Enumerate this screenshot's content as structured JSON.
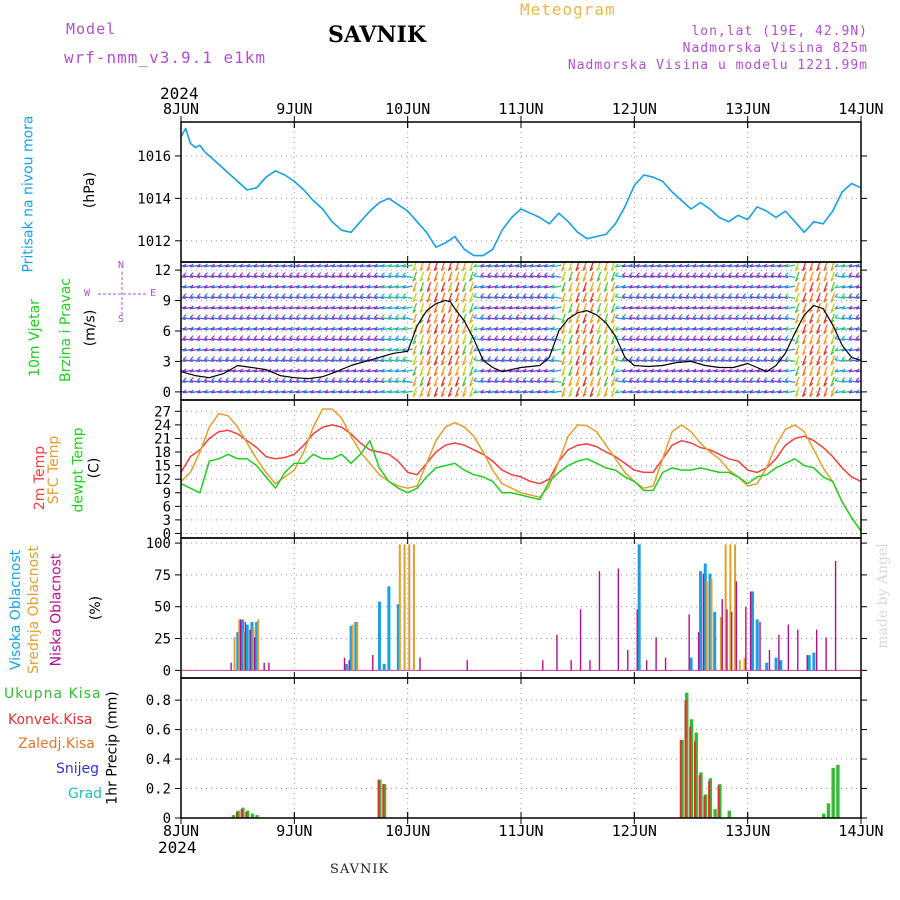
{
  "header": {
    "model_label": "Model",
    "model_name": "wrf-nmm_v3.9.1 e1km",
    "station": "SAVNIK",
    "meteogram": "Meteogram",
    "lonlat": "lon,lat (19E, 42.9N)",
    "altitude": "Nadmorska Visina 825m",
    "model_altitude": "Nadmorska Visina u modelu 1221.99m",
    "year_top": "2024",
    "year_bottom": "2024",
    "footer_station": "SAVNIK",
    "credit": "made by Angel"
  },
  "colors": {
    "pressure": "#1a9fe0",
    "t2m": "#f04040",
    "tsfc": "#e0a030",
    "dewpoint": "#22cc22",
    "cloud_high": "#1a9fe0",
    "cloud_mid": "#e0a030",
    "cloud_low": "#b01090",
    "precip_total": "#33bb33",
    "precip_conv": "#dd3333",
    "snow": "#3333cc",
    "grad": "#22bbbb"
  },
  "chart_data": [
    {
      "type": "line",
      "panel": "pressure",
      "ylabel_line1": "Pritisak na nivou mora",
      "ylabel_line2": "(hPa)",
      "x_ticks": [
        "8JUN",
        "9JUN",
        "10JUN",
        "11JUN",
        "12JUN",
        "13JUN",
        "14JUN"
      ],
      "x_range_hours": [
        0,
        144
      ],
      "ylim": [
        1011,
        1017.6
      ],
      "yticks": [
        1012,
        1014,
        1016
      ],
      "grid": true,
      "series": [
        {
          "x": [
            0,
            1,
            2,
            3,
            4,
            5,
            6,
            8,
            10,
            12,
            14,
            16,
            18,
            20,
            22,
            24,
            26,
            28,
            30,
            32,
            34,
            36,
            38,
            40,
            42,
            44,
            46,
            48,
            50,
            52,
            54,
            56,
            58,
            60,
            62,
            64,
            66,
            68,
            70,
            72,
            74,
            76,
            78,
            80,
            82,
            84,
            86,
            88,
            90,
            92,
            94,
            96,
            98,
            100,
            102,
            104,
            106,
            108,
            110,
            112,
            114,
            116,
            118,
            120,
            122,
            124,
            126,
            128,
            130,
            132,
            134,
            136,
            138,
            140,
            142,
            144
          ],
          "values": [
            1016.9,
            1017.3,
            1016.6,
            1016.4,
            1016.5,
            1016.2,
            1016.0,
            1015.6,
            1015.2,
            1014.8,
            1014.4,
            1014.5,
            1015.0,
            1015.3,
            1015.1,
            1014.8,
            1014.4,
            1013.9,
            1013.5,
            1012.9,
            1012.5,
            1012.4,
            1012.9,
            1013.4,
            1013.8,
            1014.0,
            1013.7,
            1013.4,
            1012.9,
            1012.4,
            1011.7,
            1011.9,
            1012.2,
            1011.6,
            1011.3,
            1011.3,
            1011.6,
            1012.5,
            1013.1,
            1013.5,
            1013.3,
            1013.1,
            1012.8,
            1013.3,
            1012.9,
            1012.4,
            1012.1,
            1012.2,
            1012.3,
            1012.8,
            1013.6,
            1014.6,
            1015.1,
            1015.0,
            1014.8,
            1014.3,
            1013.9,
            1013.5,
            1013.8,
            1013.5,
            1013.1,
            1012.9,
            1013.2,
            1013.0,
            1013.6,
            1013.4,
            1013.1,
            1013.4,
            1012.9,
            1012.4,
            1012.9,
            1012.8,
            1013.4,
            1014.3,
            1014.7,
            1014.5
          ]
        }
      ]
    },
    {
      "type": "line",
      "panel": "wind",
      "ylabel_line1": "10m Vjetar",
      "ylabel_line2": "Brzina i Pravac",
      "ylabel_unit": "(m/s)",
      "compass": {
        "n": "N",
        "s": "S",
        "w": "W",
        "e": "E"
      },
      "ylim": [
        -0.8,
        12.8
      ],
      "yticks": [
        0,
        3,
        6,
        9,
        12
      ],
      "grid": true,
      "series": [
        {
          "name": "speed",
          "x": [
            0,
            3,
            6,
            9,
            12,
            15,
            18,
            21,
            24,
            27,
            30,
            33,
            36,
            39,
            42,
            45,
            48,
            50,
            52,
            54,
            56,
            57,
            58,
            60,
            62,
            64,
            66,
            68,
            70,
            72,
            74,
            76,
            78,
            80,
            82,
            84,
            86,
            88,
            90,
            92,
            94,
            96,
            99,
            102,
            105,
            108,
            111,
            114,
            117,
            120,
            122,
            124,
            126,
            128,
            130,
            132,
            134,
            136,
            138,
            140,
            142,
            144
          ],
          "values": [
            2.0,
            1.6,
            1.4,
            1.8,
            2.6,
            2.4,
            2.2,
            1.6,
            1.4,
            1.3,
            1.5,
            2.0,
            2.6,
            3.0,
            3.4,
            3.8,
            4.0,
            6.5,
            8.0,
            8.7,
            9.0,
            8.9,
            8.2,
            7.0,
            5.2,
            3.1,
            2.4,
            2.0,
            2.2,
            2.4,
            2.5,
            2.6,
            3.4,
            6.0,
            7.2,
            7.8,
            8.0,
            7.6,
            6.8,
            5.5,
            3.4,
            2.6,
            2.5,
            2.6,
            2.9,
            3.0,
            2.6,
            2.4,
            2.4,
            2.8,
            2.4,
            2.0,
            2.6,
            3.8,
            5.8,
            7.6,
            8.5,
            8.2,
            6.6,
            4.6,
            3.4,
            3.1
          ]
        }
      ]
    },
    {
      "type": "line",
      "panel": "temperature",
      "ylabel_line1": "2m Temp",
      "ylabel_line2": "SFC Temp",
      "ylabel_line3": "dewpt Temp",
      "ylabel_unit": "(C)",
      "ylim": [
        -1,
        29.5
      ],
      "yticks": [
        0,
        3,
        6,
        9,
        12,
        15,
        18,
        21,
        24,
        27
      ],
      "grid": true,
      "x": [
        0,
        2,
        4,
        6,
        8,
        10,
        12,
        14,
        16,
        18,
        20,
        22,
        24,
        26,
        28,
        30,
        32,
        34,
        36,
        38,
        40,
        42,
        44,
        46,
        48,
        50,
        52,
        54,
        56,
        58,
        60,
        62,
        64,
        66,
        68,
        70,
        72,
        74,
        76,
        78,
        80,
        82,
        84,
        86,
        88,
        90,
        92,
        94,
        96,
        98,
        100,
        102,
        104,
        106,
        108,
        110,
        112,
        114,
        116,
        118,
        120,
        122,
        124,
        126,
        128,
        130,
        132,
        134,
        136,
        138,
        140,
        142,
        144
      ],
      "series": [
        {
          "name": "2m Temp",
          "values": [
            13.5,
            17.0,
            18.5,
            21.0,
            22.5,
            22.8,
            22.0,
            20.5,
            19.0,
            17.0,
            16.5,
            16.8,
            17.5,
            19.5,
            22.0,
            23.5,
            24.0,
            23.5,
            22.0,
            20.0,
            18.5,
            18.0,
            17.5,
            16.0,
            13.5,
            13.0,
            15.5,
            18.0,
            19.5,
            20.0,
            19.5,
            18.5,
            17.5,
            16.0,
            14.0,
            13.0,
            12.5,
            11.5,
            11.0,
            12.0,
            16.0,
            18.5,
            19.5,
            19.8,
            19.2,
            18.0,
            17.0,
            15.5,
            14.0,
            13.5,
            13.5,
            16.5,
            19.5,
            20.5,
            20.0,
            19.0,
            18.5,
            17.5,
            16.5,
            16.0,
            14.0,
            13.5,
            14.5,
            16.5,
            19.5,
            21.0,
            21.5,
            20.5,
            19.0,
            17.0,
            14.5,
            12.5,
            11.5
          ]
        },
        {
          "name": "SFC Temp",
          "values": [
            11.5,
            13.5,
            18.0,
            23.5,
            26.5,
            26.0,
            23.5,
            20.0,
            16.5,
            13.5,
            11.0,
            12.5,
            14.0,
            18.0,
            23.5,
            27.5,
            27.5,
            25.5,
            21.5,
            18.0,
            15.5,
            13.0,
            11.5,
            10.5,
            10.0,
            10.5,
            15.5,
            20.5,
            23.5,
            24.5,
            23.5,
            21.5,
            18.0,
            14.0,
            11.0,
            10.0,
            9.0,
            8.5,
            8.0,
            10.5,
            16.0,
            21.5,
            24.0,
            23.8,
            22.5,
            19.5,
            16.5,
            13.5,
            11.5,
            10.0,
            10.5,
            16.5,
            22.5,
            24.0,
            22.5,
            20.0,
            18.0,
            16.5,
            14.0,
            12.5,
            10.5,
            11.0,
            14.5,
            19.5,
            23.0,
            24.0,
            22.5,
            18.5,
            14.5,
            11.5,
            7.0,
            3.5,
            0.5
          ]
        },
        {
          "name": "dewpt Temp",
          "values": [
            11.0,
            10.0,
            9.0,
            16.0,
            16.5,
            17.5,
            16.5,
            16.5,
            15.0,
            12.5,
            10.0,
            13.5,
            15.5,
            15.5,
            17.5,
            16.5,
            16.5,
            17.5,
            15.5,
            17.5,
            20.5,
            14.5,
            11.5,
            10.0,
            9.0,
            10.0,
            12.5,
            14.5,
            15.0,
            15.5,
            14.0,
            13.0,
            12.5,
            11.5,
            9.0,
            9.0,
            8.5,
            8.0,
            7.5,
            11.5,
            13.5,
            15.0,
            16.0,
            16.5,
            15.5,
            14.5,
            14.0,
            12.5,
            11.5,
            9.5,
            9.5,
            13.5,
            14.5,
            14.0,
            14.0,
            14.5,
            14.0,
            13.5,
            13.5,
            12.5,
            11.0,
            12.5,
            13.0,
            14.5,
            15.5,
            16.5,
            15.0,
            14.5,
            12.5,
            11.5,
            7.0,
            3.5,
            0.5
          ]
        }
      ]
    },
    {
      "type": "bar",
      "panel": "clouds",
      "ylabel_line1": "Visoka Oblacnost",
      "ylabel_line2": "Srednja Oblacnost",
      "ylabel_line3": "Niska Oblacnost",
      "ylabel_unit": "(%)",
      "ylim": [
        -6,
        104
      ],
      "yticks": [
        0,
        25,
        50,
        75,
        100
      ],
      "grid": true,
      "series": [
        {
          "name": "Visoka Oblacnost",
          "x": [
            12,
            13,
            14,
            15,
            16,
            35,
            36,
            37,
            42,
            43,
            44,
            46,
            97,
            108,
            110,
            111,
            112,
            113,
            121,
            122,
            124,
            126,
            127,
            133,
            134
          ],
          "values": [
            30,
            40,
            36,
            38,
            38,
            5,
            35,
            38,
            54,
            5,
            66,
            52,
            99,
            10,
            78,
            84,
            76,
            46,
            62,
            40,
            6,
            10,
            8,
            12,
            14
          ]
        },
        {
          "name": "Srednja Oblacnost",
          "x": [
            11,
            12,
            13,
            15,
            16,
            36,
            37,
            46,
            47,
            48,
            49,
            111,
            112,
            114,
            115,
            116,
            117,
            118,
            119
          ],
          "values": [
            26,
            40,
            30,
            34,
            40,
            36,
            38,
            99,
            99,
            99,
            99,
            70,
            72,
            42,
            99,
            99,
            99,
            8,
            10
          ]
        },
        {
          "name": "Niska Oblacnost",
          "x": [
            10,
            12,
            13,
            14,
            15,
            17,
            18,
            34,
            35,
            40,
            50,
            60,
            76,
            79,
            82,
            84,
            86,
            88,
            92,
            94,
            96,
            98,
            100,
            102,
            107,
            109,
            110,
            114,
            115,
            116,
            117,
            119,
            120,
            122,
            124,
            126,
            128,
            130,
            132,
            134,
            136,
            138
          ],
          "values": [
            6,
            40,
            38,
            32,
            26,
            6,
            6,
            10,
            8,
            12,
            10,
            8,
            8,
            28,
            8,
            48,
            8,
            78,
            80,
            16,
            48,
            8,
            26,
            10,
            44,
            30,
            76,
            56,
            48,
            46,
            70,
            50,
            62,
            38,
            16,
            28,
            36,
            32,
            12,
            32,
            26,
            86
          ]
        }
      ]
    },
    {
      "type": "bar",
      "panel": "precipitation",
      "legend": [
        "Ukupna Kisa",
        "Konvek.Kisa",
        "Zaledj.Kisa",
        "Snijeg",
        "Grad"
      ],
      "ylabel": "1hr Precip (mm)",
      "ylim": [
        0,
        0.95
      ],
      "yticks": [
        0,
        0.2,
        0.4,
        0.6,
        0.8
      ],
      "grid": true,
      "series": [
        {
          "name": "Ukupna Kisa",
          "x": [
            11,
            12,
            13,
            14,
            15,
            16,
            42,
            43,
            106,
            107,
            108,
            109,
            110,
            111,
            112,
            113,
            114,
            116,
            136,
            137,
            138,
            139
          ],
          "values": [
            0.02,
            0.05,
            0.07,
            0.05,
            0.03,
            0.02,
            0.26,
            0.23,
            0.53,
            0.85,
            0.67,
            0.58,
            0.31,
            0.16,
            0.27,
            0.06,
            0.23,
            0.05,
            0.03,
            0.1,
            0.34,
            0.36
          ]
        },
        {
          "name": "Konvek.Kisa",
          "x": [
            12,
            13,
            14,
            42,
            43,
            106,
            107,
            108,
            109,
            110,
            111,
            112,
            114
          ],
          "values": [
            0.04,
            0.06,
            0.04,
            0.26,
            0.23,
            0.53,
            0.8,
            0.62,
            0.52,
            0.29,
            0.15,
            0.25,
            0.22
          ]
        }
      ]
    }
  ]
}
